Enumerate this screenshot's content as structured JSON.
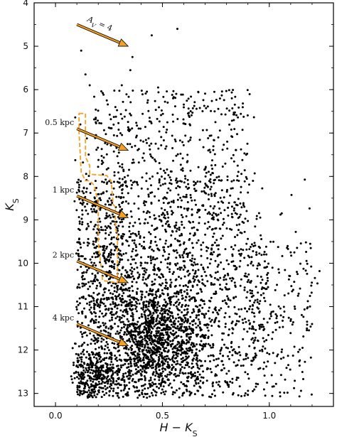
{
  "chart_data": {
    "type": "scatter",
    "title": "",
    "xlabel": "H − K",
    "xlabel_sub": "S",
    "ylabel": "K",
    "ylabel_sub": "S",
    "xlim": [
      -0.1,
      1.3
    ],
    "ylim": [
      13.3,
      4
    ],
    "y_inverted": true,
    "grid": false,
    "x_ticks": [
      0.0,
      0.5,
      1.0
    ],
    "x_tick_labels": [
      "0.0",
      "0.5",
      "1.0"
    ],
    "y_ticks": [
      4,
      5,
      6,
      7,
      8,
      9,
      10,
      11,
      12,
      13
    ],
    "y_tick_labels": [
      "4",
      "5",
      "6",
      "7",
      "8",
      "9",
      "10",
      "11",
      "12",
      "13"
    ],
    "point_color": "#000000",
    "arrow_color": "#F5A020",
    "isochrone_color": "#F5A020",
    "reddening_vectors": [
      {
        "label": "A",
        "label_sub": "V",
        "label_suffix": " = 4",
        "start": [
          0.1,
          4.5
        ],
        "end": [
          0.34,
          5.0
        ]
      },
      {
        "label": "0.5 kpc",
        "start": [
          0.1,
          6.9
        ],
        "end": [
          0.34,
          7.4
        ]
      },
      {
        "label": "1 kpc",
        "start": [
          0.1,
          8.45
        ],
        "end": [
          0.34,
          8.95
        ]
      },
      {
        "label": "2 kpc",
        "start": [
          0.1,
          9.95
        ],
        "end": [
          0.34,
          10.45
        ]
      },
      {
        "label": "4 kpc",
        "start": [
          0.1,
          11.4
        ],
        "end": [
          0.34,
          11.9
        ]
      }
    ],
    "isochrone_outline": [
      [
        0.11,
        6.55
      ],
      [
        0.14,
        6.55
      ],
      [
        0.14,
        7.55
      ],
      [
        0.16,
        7.75
      ],
      [
        0.16,
        7.95
      ],
      [
        0.24,
        7.98
      ],
      [
        0.26,
        8.1
      ],
      [
        0.27,
        8.65
      ],
      [
        0.28,
        8.7
      ],
      [
        0.28,
        9.2
      ],
      [
        0.29,
        9.35
      ],
      [
        0.29,
        10.45
      ],
      [
        0.22,
        10.4
      ],
      [
        0.2,
        9.5
      ],
      [
        0.2,
        8.6
      ],
      [
        0.18,
        8.2
      ],
      [
        0.16,
        8.1
      ],
      [
        0.14,
        8.1
      ],
      [
        0.12,
        7.9
      ],
      [
        0.11,
        7.0
      ]
    ],
    "density_model": [
      {
        "count": 1200,
        "x_mean": 0.47,
        "x_sd": 0.13,
        "y_mean": 11.7,
        "y_sd": 0.65
      },
      {
        "count": 320,
        "x_mean": 0.19,
        "x_sd": 0.07,
        "y_mean": 12.6,
        "y_sd": 0.35
      },
      {
        "count": 2100,
        "x_range": [
          0.1,
          1.2
        ],
        "y_range": [
          8.0,
          13.1
        ]
      },
      {
        "count": 380,
        "x_range": [
          0.18,
          0.95
        ],
        "y_range": [
          6.0,
          8.2
        ]
      },
      {
        "count": 230,
        "x_range": [
          0.1,
          1.25
        ],
        "y_range": [
          9.5,
          11.6
        ]
      },
      {
        "count": 180,
        "x_range": [
          0.18,
          0.32
        ],
        "y_range": [
          8.4,
          11.0
        ]
      },
      {
        "count": 60,
        "x_range": [
          0.08,
          0.24
        ],
        "y_range": [
          6.6,
          13.0
        ]
      }
    ],
    "sparse_points": [
      {
        "x": 0.12,
        "y": 5.1
      },
      {
        "x": 0.14,
        "y": 5.65
      },
      {
        "x": 0.16,
        "y": 5.9
      },
      {
        "x": 0.35,
        "y": 5.55
      },
      {
        "x": 0.36,
        "y": 5.25
      },
      {
        "x": 0.45,
        "y": 4.75
      },
      {
        "x": 0.57,
        "y": 4.6
      },
      {
        "x": 0.31,
        "y": 5.9
      },
      {
        "x": 0.43,
        "y": 6.3
      },
      {
        "x": 0.24,
        "y": 6.25
      },
      {
        "x": 0.44,
        "y": 6.65
      },
      {
        "x": 0.55,
        "y": 6.2
      },
      {
        "x": 0.62,
        "y": 6.55
      },
      {
        "x": 0.28,
        "y": 6.4
      },
      {
        "x": 0.48,
        "y": 5.95
      }
    ]
  }
}
